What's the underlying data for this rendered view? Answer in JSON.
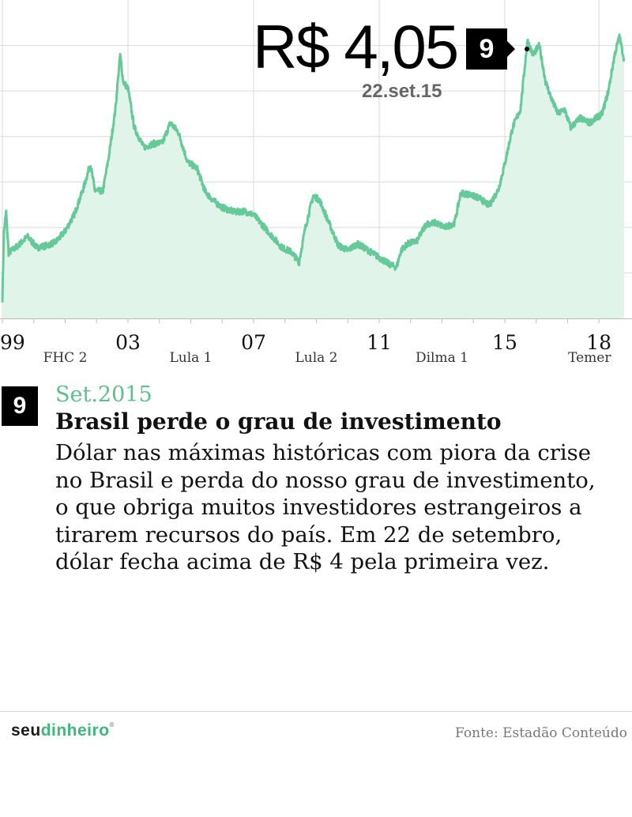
{
  "callout": {
    "value": "R$ 4,05",
    "date": "22.set.15",
    "marker": "9"
  },
  "event": {
    "number": "9",
    "date": "Set.2015",
    "title": "Brasil perde o grau de investimento",
    "lines": [
      "Dólar nas máximas históricas com piora da crise",
      "no Brasil e perda do nosso grau de investimento,",
      "o que obriga muitos investidores estrangeiros a",
      "tirarem recursos do país. Em 22 de setembro,",
      "dólar fecha acima de R$ 4 pela primeira vez."
    ]
  },
  "footer": {
    "brand_part1": "seu",
    "brand_part2": "dinheiro",
    "source": "Fonte: Estadão Conteúdo"
  },
  "colors": {
    "line": "#66c99a",
    "fill": "#e1f4ea",
    "accent": "#5cc08a"
  },
  "chart_data": {
    "type": "area",
    "title": "",
    "xlabel": "",
    "ylabel": "",
    "x_tick_labels": [
      {
        "year": 1999,
        "label": "99"
      },
      {
        "year": 2003,
        "label": "03"
      },
      {
        "year": 2007,
        "label": "07"
      },
      {
        "year": 2011,
        "label": "11"
      },
      {
        "year": 2015,
        "label": "15"
      },
      {
        "year": 2018,
        "label": "18"
      }
    ],
    "periods": [
      {
        "label": "FHC 2",
        "start": 1999,
        "end": 2003
      },
      {
        "label": "Lula 1",
        "start": 2003,
        "end": 2007
      },
      {
        "label": "Lula 2",
        "start": 2007,
        "end": 2011
      },
      {
        "label": "Dilma 1",
        "start": 2011,
        "end": 2015
      },
      {
        "label": "Temer",
        "start": 2016.6,
        "end": 2018.8
      }
    ],
    "xlim": [
      1999,
      2018.8
    ],
    "ylim": [
      1.0,
      4.5
    ],
    "grid": true,
    "series": [
      {
        "points": [
          [
            1999.0,
            1.21
          ],
          [
            1999.05,
            1.95
          ],
          [
            1999.12,
            2.17
          ],
          [
            1999.2,
            1.72
          ],
          [
            1999.5,
            1.8
          ],
          [
            1999.8,
            1.9
          ],
          [
            2000.1,
            1.78
          ],
          [
            2000.4,
            1.8
          ],
          [
            2000.7,
            1.84
          ],
          [
            2001.0,
            1.96
          ],
          [
            2001.3,
            2.15
          ],
          [
            2001.6,
            2.45
          ],
          [
            2001.8,
            2.7
          ],
          [
            2001.95,
            2.4
          ],
          [
            2002.2,
            2.4
          ],
          [
            2002.4,
            2.8
          ],
          [
            2002.6,
            3.3
          ],
          [
            2002.75,
            3.9
          ],
          [
            2002.85,
            3.6
          ],
          [
            2003.0,
            3.53
          ],
          [
            2003.2,
            3.1
          ],
          [
            2003.5,
            2.88
          ],
          [
            2003.8,
            2.92
          ],
          [
            2004.1,
            2.93
          ],
          [
            2004.35,
            3.15
          ],
          [
            2004.6,
            3.05
          ],
          [
            2004.9,
            2.72
          ],
          [
            2005.2,
            2.65
          ],
          [
            2005.45,
            2.4
          ],
          [
            2005.7,
            2.3
          ],
          [
            2006.0,
            2.22
          ],
          [
            2006.4,
            2.17
          ],
          [
            2006.7,
            2.18
          ],
          [
            2007.0,
            2.14
          ],
          [
            2007.3,
            2.02
          ],
          [
            2007.6,
            1.9
          ],
          [
            2007.9,
            1.78
          ],
          [
            2008.2,
            1.73
          ],
          [
            2008.45,
            1.62
          ],
          [
            2008.65,
            2.0
          ],
          [
            2008.9,
            2.35
          ],
          [
            2009.1,
            2.3
          ],
          [
            2009.4,
            2.05
          ],
          [
            2009.7,
            1.8
          ],
          [
            2010.0,
            1.75
          ],
          [
            2010.3,
            1.82
          ],
          [
            2010.6,
            1.76
          ],
          [
            2011.0,
            1.67
          ],
          [
            2011.3,
            1.6
          ],
          [
            2011.55,
            1.56
          ],
          [
            2011.7,
            1.75
          ],
          [
            2011.9,
            1.82
          ],
          [
            2012.2,
            1.85
          ],
          [
            2012.5,
            2.04
          ],
          [
            2012.8,
            2.05
          ],
          [
            2013.1,
            2.0
          ],
          [
            2013.4,
            2.05
          ],
          [
            2013.6,
            2.38
          ],
          [
            2013.9,
            2.36
          ],
          [
            2014.2,
            2.32
          ],
          [
            2014.5,
            2.24
          ],
          [
            2014.8,
            2.42
          ],
          [
            2015.0,
            2.7
          ],
          [
            2015.25,
            3.1
          ],
          [
            2015.5,
            3.3
          ],
          [
            2015.72,
            4.05
          ],
          [
            2015.9,
            3.9
          ],
          [
            2016.1,
            4.0
          ],
          [
            2016.3,
            3.6
          ],
          [
            2016.5,
            3.4
          ],
          [
            2016.7,
            3.25
          ],
          [
            2016.9,
            3.3
          ],
          [
            2017.1,
            3.1
          ],
          [
            2017.4,
            3.2
          ],
          [
            2017.7,
            3.15
          ],
          [
            2017.9,
            3.2
          ],
          [
            2018.1,
            3.25
          ],
          [
            2018.3,
            3.5
          ],
          [
            2018.5,
            3.9
          ],
          [
            2018.65,
            4.1
          ],
          [
            2018.8,
            3.85
          ]
        ]
      }
    ]
  }
}
